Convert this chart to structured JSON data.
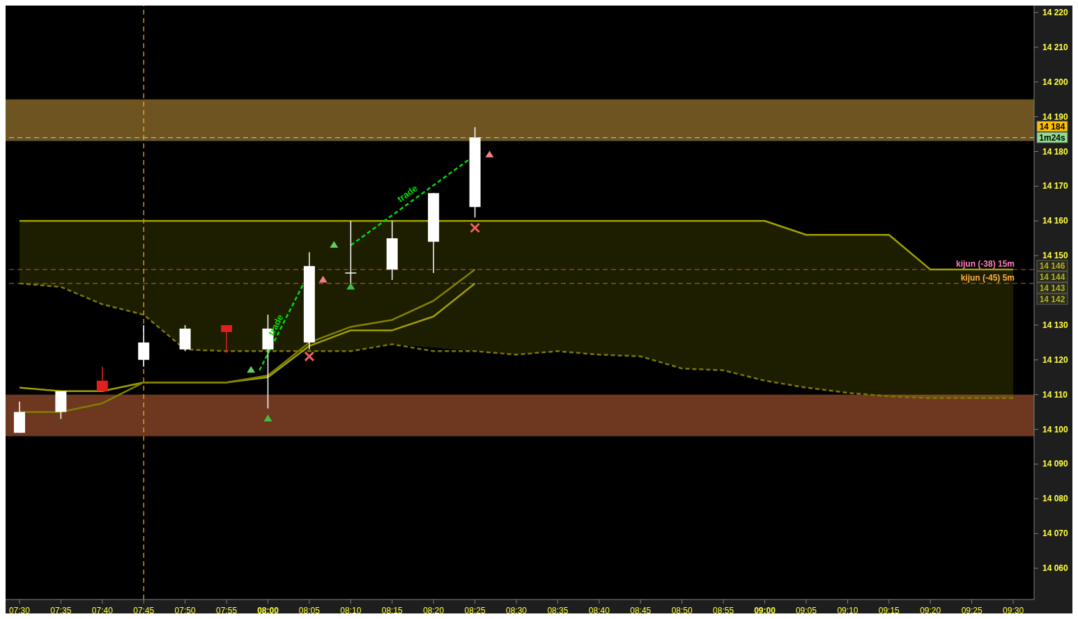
{
  "chart_data": {
    "type": "candlestick",
    "x": [
      7.5,
      7.5833,
      7.6667,
      7.75,
      7.8333,
      7.9167,
      8,
      8.0833,
      8.1667,
      8.25,
      8.3333,
      8.4167
    ],
    "ohlc": [
      [
        14099,
        14108,
        14099,
        14105
      ],
      [
        14105,
        14111,
        14103,
        14111
      ],
      [
        14114,
        14118,
        14111,
        14111
      ],
      [
        14120,
        14130,
        14118,
        14125
      ],
      [
        14123,
        14130,
        14122.5,
        14129
      ],
      [
        14130,
        14130,
        14122,
        14128
      ],
      [
        14123,
        14133,
        14106,
        14129
      ],
      [
        14125,
        14151,
        14123,
        14147
      ],
      [
        14145,
        14160,
        14142,
        14145
      ],
      [
        14146,
        14160,
        14143,
        14155
      ],
      [
        14154,
        14168,
        14145,
        14168
      ],
      [
        14164,
        14187,
        14161,
        14184
      ]
    ],
    "colors": [
      "#ffffff",
      "#ffffff",
      "#e02020",
      "#ffffff",
      "#ffffff",
      "#e02020",
      "#ffffff",
      "#ffffff",
      "#ffffff",
      "#ffffff",
      "#ffffff",
      "#ffffff"
    ],
    "series": [
      {
        "type": "line",
        "color": "#a0a000",
        "x": [
          7.5,
          7.5833,
          7.6667,
          7.75,
          7.8333,
          7.9167,
          8,
          8.0833,
          8.1667,
          8.25,
          8.4167,
          8.5,
          8.5833,
          8.6667,
          8.75,
          8.8333,
          8.9167,
          9,
          9.0833,
          9.1667,
          9.25,
          9.3333,
          9.4167,
          9.5
        ],
        "values": [
          14160,
          14160,
          14160,
          14160,
          14160,
          14160,
          14160,
          14160,
          14160,
          14160,
          14160,
          14160,
          14160,
          14160,
          14160,
          14160,
          14160,
          14160,
          14156,
          14156,
          14156,
          14146,
          14146,
          14146
        ],
        "lower": [
          14142,
          14141,
          14136,
          14133,
          14123,
          14122.5,
          14122.5,
          14122.5,
          14122.5,
          14124.5,
          14122.5,
          14121.5,
          14122.5,
          14121.5,
          14121,
          14117.5,
          14117,
          14114,
          14112,
          14110.5,
          14109.5,
          14109,
          14109,
          14109
        ],
        "upper": [
          14160,
          14160,
          14160,
          14160,
          14160,
          14160,
          14160,
          14160,
          14160,
          14160,
          14160,
          14160,
          14160,
          14160,
          14160,
          14160,
          14160,
          14160,
          14156,
          14156,
          14156,
          14146,
          14146,
          14146
        ]
      },
      {
        "type": "line",
        "color": "#7a7a00",
        "line_style": "dashed",
        "x": [
          7.5,
          7.5833,
          7.6667,
          7.75,
          7.8333,
          7.9167,
          8,
          8.0833,
          8.1667,
          8.25,
          8.3333,
          8.4167,
          8.5,
          8.5833,
          8.6667,
          8.75,
          8.8333,
          8.9167,
          9,
          9.0833,
          9.1667,
          9.25,
          9.3333,
          9.4167,
          9.5
        ],
        "values": [
          14142,
          14141,
          14136,
          14133,
          14123,
          14122.5,
          14122.5,
          14122.5,
          14122.5,
          14124.5,
          14122.5,
          14122.5,
          14121.5,
          14122.5,
          14121.5,
          14121,
          14117.5,
          14117,
          14114,
          14112,
          14110.5,
          14109.5,
          14109,
          14109,
          14109
        ]
      },
      {
        "type": "line",
        "color": "#a0a000",
        "x": [
          7.5,
          7.5833,
          7.6667,
          7.75,
          7.8333,
          7.9167,
          8,
          8.0833,
          8.1667,
          8.25,
          8.3333,
          8.4167
        ],
        "values": [
          14112,
          14111,
          14111,
          14113.5,
          14113.5,
          14113.5,
          14115,
          14124,
          14128.5,
          14128.5,
          14132.5,
          14142
        ]
      },
      {
        "type": "line",
        "color": "#808000",
        "x": [
          7.5,
          7.5833,
          7.6667,
          7.75,
          7.8333,
          7.9167,
          8,
          8.0833,
          8.1667,
          8.25,
          8.3333,
          8.4167
        ],
        "values": [
          14105,
          14105,
          14107.5,
          14113.5,
          14113.5,
          14113.5,
          14115.5,
          14125,
          14129.5,
          14131.5,
          14137,
          14146
        ]
      },
      {
        "type": "line",
        "color": "#00e000",
        "line_style": "dashed",
        "x": [
          7.983,
          8.07
        ],
        "values": [
          14117,
          14141.5
        ]
      },
      {
        "type": "line",
        "color": "#00e000",
        "line_style": "dashed",
        "x": [
          8.167,
          8.403
        ],
        "values": [
          14153,
          14177.5
        ]
      },
      {
        "type": "scatter",
        "marker": "triangle",
        "color": "#40c040",
        "x": [
          8,
          8.1667
        ],
        "values": [
          14103,
          14141
        ]
      },
      {
        "type": "scatter",
        "marker": "cross",
        "color": "#f06060",
        "x": [
          8.0833,
          8.4167
        ],
        "values": [
          14121,
          14158
        ]
      },
      {
        "type": "scatter",
        "marker": "triangle",
        "color": "#60d060",
        "x": [
          7.966,
          8.133
        ],
        "values": [
          14117,
          14153
        ]
      },
      {
        "type": "scatter",
        "marker": "triangle",
        "color": "#f08080",
        "x": [
          8.111,
          8.446
        ],
        "values": [
          14143,
          14179
        ]
      }
    ],
    "xlim": [
      7.472,
      9.542
    ],
    "ylim": [
      14051,
      14222
    ],
    "xticks": [
      {
        "value": 7.5,
        "label": "07:30"
      },
      {
        "value": 7.5833,
        "label": "07:35"
      },
      {
        "value": 7.6667,
        "label": "07:40"
      },
      {
        "value": 7.75,
        "label": "07:45"
      },
      {
        "value": 7.8333,
        "label": "07:50"
      },
      {
        "value": 7.9167,
        "label": "07:55"
      },
      {
        "value": 8,
        "label": "08:00"
      },
      {
        "value": 8.0833,
        "label": "08:05"
      },
      {
        "value": 8.1667,
        "label": "08:10"
      },
      {
        "value": 8.25,
        "label": "08:15"
      },
      {
        "value": 8.3333,
        "label": "08:20"
      },
      {
        "value": 8.4167,
        "label": "08:25"
      },
      {
        "value": 8.5,
        "label": "08:30"
      },
      {
        "value": 8.5833,
        "label": "08:35"
      },
      {
        "value": 8.6667,
        "label": "08:40"
      },
      {
        "value": 8.75,
        "label": "08:45"
      },
      {
        "value": 8.8333,
        "label": "08:50"
      },
      {
        "value": 8.9167,
        "label": "08:55"
      },
      {
        "value": 9,
        "label": "09:00"
      },
      {
        "value": 9.0833,
        "label": "09:05"
      },
      {
        "value": 9.1667,
        "label": "09:10"
      },
      {
        "value": 9.25,
        "label": "09:15"
      },
      {
        "value": 9.3333,
        "label": "09:20"
      },
      {
        "value": 9.4167,
        "label": "09:25"
      },
      {
        "value": 9.5,
        "label": "09:30"
      }
    ],
    "yticks": [
      {
        "value": 14060,
        "label": "14 060"
      },
      {
        "value": 14070,
        "label": "14 070"
      },
      {
        "value": 14080,
        "label": "14 080"
      },
      {
        "value": 14090,
        "label": "14 090"
      },
      {
        "value": 14100,
        "label": "14 100"
      },
      {
        "value": 14110,
        "label": "14 110"
      },
      {
        "value": 14120,
        "label": "14 120"
      },
      {
        "value": 14130,
        "label": "14 130"
      },
      {
        "value": 14150,
        "label": "14 150"
      },
      {
        "value": 14160,
        "label": "14 160"
      },
      {
        "value": 14170,
        "label": "14 170"
      },
      {
        "value": 14180,
        "label": "14 180"
      },
      {
        "value": 14190,
        "label": "14 190"
      },
      {
        "value": 14200,
        "label": "14 200"
      },
      {
        "value": 14210,
        "label": "14 210"
      },
      {
        "value": 14220,
        "label": "14 220"
      }
    ],
    "bands": [
      {
        "axis": "y",
        "from": 14183,
        "to": 14195,
        "color": "#6e5420"
      },
      {
        "axis": "y",
        "from": 14098,
        "to": 14110,
        "color": "#6e3720"
      }
    ],
    "ref_lines": [
      {
        "axis": "y",
        "value": 14184,
        "color": "#40e0e0",
        "line_style": "dashed"
      },
      {
        "axis": "y",
        "value": 14146,
        "label": "kijun (-38) 15m",
        "color": "#ff80c0",
        "line_style": "dashed"
      },
      {
        "axis": "y",
        "value": 14142,
        "label": "kijun (-45) 5m",
        "color": "#ffb040",
        "line_style": "dashed"
      },
      {
        "axis": "x",
        "value": 7.75,
        "color": "#ffb020",
        "line_style": "dashed"
      }
    ],
    "annotations": [
      {
        "text": "trade",
        "x": 8.03,
        "y": 14129
      },
      {
        "text": "trade",
        "x": 8.29,
        "y": 14166
      },
      "14 184",
      "1m24s",
      "14 146",
      "14 144",
      "14 143",
      "14 142"
    ]
  }
}
